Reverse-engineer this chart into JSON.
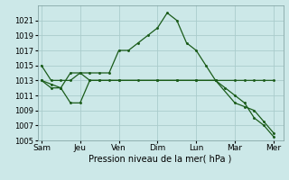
{
  "background_color": "#cce8e8",
  "grid_color": "#aacccc",
  "line_color": "#1a5c1a",
  "xlabel": "Pression niveau de la mer( hPa )",
  "ylim": [
    1005,
    1023
  ],
  "yticks": [
    1005,
    1007,
    1009,
    1011,
    1013,
    1015,
    1017,
    1019,
    1021
  ],
  "x_labels": [
    "Sam",
    "Jeu",
    "Ven",
    "Dim",
    "Lun",
    "Mar",
    "Mer"
  ],
  "x_positions": [
    0,
    2,
    4,
    6,
    8,
    10,
    12
  ],
  "series1_x": [
    0,
    0.5,
    1.0,
    1.5,
    2.0,
    2.5,
    3.0,
    3.5,
    4.0,
    4.5,
    5.0,
    5.5,
    6.0,
    6.5,
    7.0,
    7.5,
    8.0,
    8.5,
    9.0,
    9.5,
    10.0,
    10.5,
    11.0,
    11.5,
    12.0
  ],
  "series1_y": [
    1015,
    1013,
    1013,
    1013,
    1014,
    1014,
    1014,
    1014,
    1017,
    1017,
    1018,
    1019,
    1020,
    1022,
    1021,
    1018,
    1017,
    1015,
    1013,
    1012,
    1011,
    1010,
    1008,
    1007,
    1005.5
  ],
  "series2_x": [
    0,
    0.5,
    1.0,
    1.5,
    2.0,
    2.5,
    3.0,
    3.5,
    4.0,
    6.0,
    7.0,
    8.0,
    9.0,
    10.0,
    10.5,
    11.0,
    11.5,
    12.0
  ],
  "series2_y": [
    1013,
    1012.5,
    1012,
    1014,
    1014,
    1013,
    1013,
    1013,
    1013,
    1013,
    1013,
    1013,
    1013,
    1010,
    1009.5,
    1009,
    1007.5,
    1006
  ],
  "series3_x": [
    0,
    0.5,
    1.0,
    1.5,
    2.0,
    2.5,
    3.0,
    4.0,
    5.0,
    6.0,
    7.0,
    8.0,
    9.0,
    10.0,
    10.5,
    11.0,
    11.5,
    12.0
  ],
  "series3_y": [
    1013,
    1012,
    1012,
    1010,
    1010,
    1013,
    1013,
    1013,
    1013,
    1013,
    1013,
    1013,
    1013,
    1013,
    1013,
    1013,
    1013,
    1013
  ]
}
